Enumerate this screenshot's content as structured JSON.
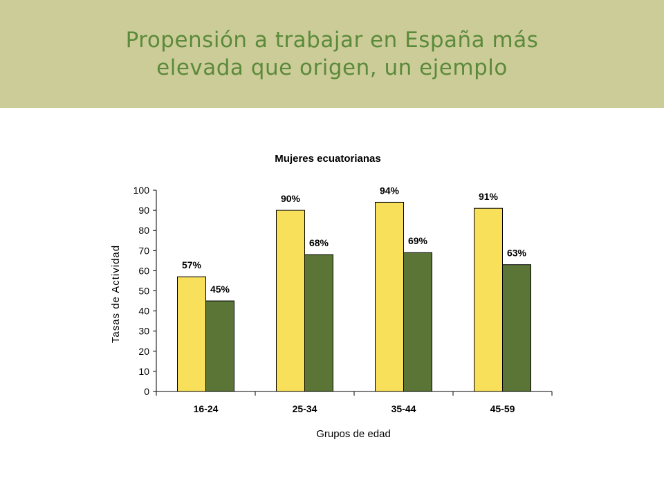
{
  "slide": {
    "title_lines": [
      "Propensión a trabajar en España más",
      "elevada que origen, un ejemplo"
    ],
    "band_color": "#cccc99",
    "title_color": "#5b8a3a"
  },
  "chart_data": {
    "type": "bar",
    "title": "Mujeres ecuatorianas",
    "xlabel": "Grupos de edad",
    "ylabel": "Tasas de Actividad",
    "categories": [
      "16-24",
      "25-34",
      "35-44",
      "45-59"
    ],
    "ylim": [
      0,
      100
    ],
    "yticks": [
      0,
      10,
      20,
      30,
      40,
      50,
      60,
      70,
      80,
      90,
      100
    ],
    "grid": false,
    "series": [
      {
        "values": [
          57,
          90,
          94,
          91
        ],
        "labels": [
          "57%",
          "90%",
          "94%",
          "91%"
        ],
        "color": "#f9e05a"
      },
      {
        "values": [
          45,
          68,
          69,
          63
        ],
        "labels": [
          "45%",
          "68%",
          "69%",
          "63%"
        ],
        "color": "#5a7535"
      }
    ]
  }
}
